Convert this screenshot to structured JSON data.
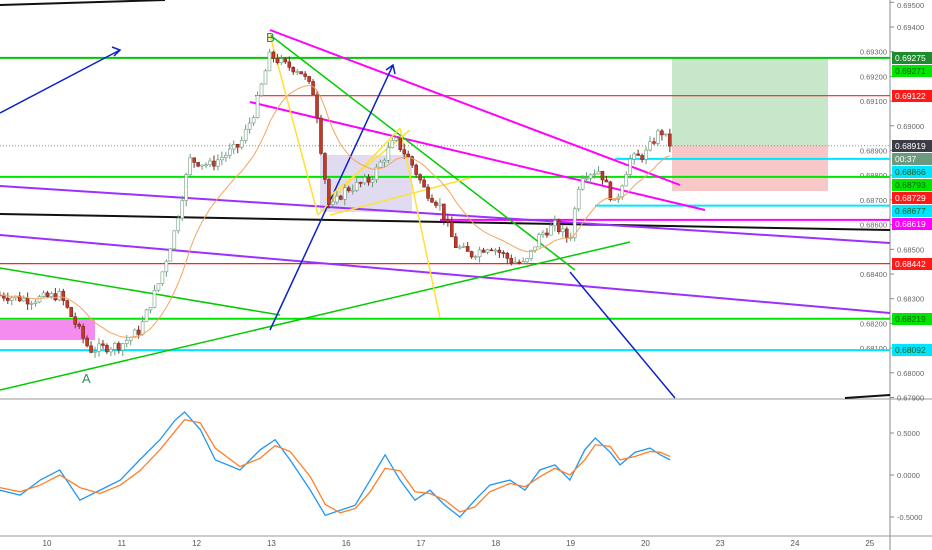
{
  "chart_data": {
    "type": "candlestick",
    "title": "",
    "x_ticks": [
      "10",
      "11",
      "12",
      "13",
      "16",
      "17",
      "18",
      "19",
      "20",
      "23",
      "24",
      "25"
    ],
    "price_axis": {
      "ticks": [
        "0.69500",
        "0.69400",
        "0.69300",
        "0.69200",
        "0.69100",
        "0.69000",
        "0.68900",
        "0.68800",
        "0.68700",
        "0.68600",
        "0.68500",
        "0.68400",
        "0.68300",
        "0.68200",
        "0.68100",
        "0.68000",
        "0.67900"
      ],
      "range": [
        0.67898,
        0.69509
      ]
    },
    "price_path": {
      "t": [
        -0.63,
        -0.23,
        0.17,
        0.57,
        0.98,
        1.24,
        1.51,
        1.71,
        1.91,
        2.18,
        2.58,
        2.78,
        2.98,
        3.18,
        3.38,
        3.58,
        3.68,
        3.78,
        3.98,
        4.32,
        4.65,
        4.85,
        5.05,
        5.25,
        5.45,
        5.66,
        5.92,
        6.19,
        6.39,
        6.59,
        6.79,
        6.99,
        7.13,
        7.39,
        7.59,
        7.79,
        7.99,
        8.2,
        8.36
      ],
      "close": [
        0.68315,
        0.68295,
        0.68315,
        0.68092,
        0.68113,
        0.68173,
        0.68376,
        0.68578,
        0.68862,
        0.68841,
        0.68922,
        0.69064,
        0.69287,
        0.69246,
        0.69226,
        0.69125,
        0.68862,
        0.68659,
        0.6874,
        0.68781,
        0.68943,
        0.68862,
        0.6874,
        0.68679,
        0.68517,
        0.68477,
        0.68517,
        0.68457,
        0.68436,
        0.68558,
        0.68598,
        0.68538,
        0.68801,
        0.68821,
        0.68679,
        0.68862,
        0.68882,
        0.68983,
        0.6891
      ]
    },
    "levels": [
      {
        "price": "0.69275",
        "color": "#00c800",
        "line": true,
        "label_color": "#1e8c2e"
      },
      {
        "price": "0.69271",
        "color": "#00e600",
        "line": false,
        "label_color": "#00e600"
      },
      {
        "price": "0.69122",
        "color": "#ff2020",
        "line": true,
        "label_color": "#ff1a1a"
      },
      {
        "price": "0.68919",
        "color": "#555555",
        "line": true,
        "label_color": "#3c3c46"
      },
      {
        "price": "0.68866",
        "color": "#00e5ff",
        "line": true,
        "label_color": "#00e5ff"
      },
      {
        "price": "0.68793",
        "color": "#00e600",
        "line": true,
        "label_color": "#00e600"
      },
      {
        "price": "0.68729",
        "color": "#ff2020",
        "line": false,
        "label_color": "#ff1a1a"
      },
      {
        "price": "0.68677",
        "color": "#00e5ff",
        "line": true,
        "label_color": "#00e5ff"
      },
      {
        "price": "0.68619",
        "color": "#ff00ff",
        "line": true,
        "label_color": "#ff00ff"
      },
      {
        "price": "0.68442",
        "color": "#ff2020",
        "line": true,
        "label_color": "#ff1a1a"
      },
      {
        "price": "0.68219",
        "color": "#00e600",
        "line": true,
        "label_color": "#00e600"
      },
      {
        "price": "0.68092",
        "color": "#00e5ff",
        "line": true,
        "label_color": "#00e5ff"
      }
    ],
    "countdown": "00:37",
    "pattern_labels": {
      "a": "A",
      "b": "B"
    },
    "oscillator": {
      "ticks": [
        "0.5000",
        "0.0000",
        "-0.5000"
      ],
      "range": [
        -0.62,
        0.9
      ],
      "t": [
        -0.63,
        -0.36,
        -0.09,
        0.17,
        0.44,
        0.71,
        0.98,
        1.24,
        1.51,
        1.71,
        1.84,
        2.05,
        2.25,
        2.58,
        2.85,
        3.05,
        3.25,
        3.52,
        3.72,
        3.92,
        4.12,
        4.32,
        4.52,
        4.72,
        4.92,
        5.12,
        5.32,
        5.52,
        5.72,
        5.92,
        6.19,
        6.39,
        6.59,
        6.79,
        6.99,
        7.19,
        7.33,
        7.53,
        7.66,
        7.86,
        8.06,
        8.2,
        8.33
      ],
      "series": [
        {
          "color": "#2196f3",
          "values": [
            -0.18,
            -0.24,
            -0.06,
            0.06,
            -0.3,
            -0.18,
            -0.06,
            0.18,
            0.42,
            0.65,
            0.75,
            0.54,
            0.18,
            0.06,
            0.3,
            0.42,
            0.18,
            -0.18,
            -0.48,
            -0.42,
            -0.36,
            -0.06,
            0.24,
            -0.06,
            -0.3,
            -0.18,
            -0.36,
            -0.5,
            -0.3,
            -0.12,
            -0.06,
            -0.18,
            0.06,
            0.12,
            -0.06,
            0.3,
            0.44,
            0.27,
            0.12,
            0.27,
            0.32,
            0.24,
            0.18
          ]
        },
        {
          "color": "#ff7f27",
          "values": [
            -0.15,
            -0.2,
            -0.12,
            0.0,
            -0.15,
            -0.22,
            -0.12,
            0.05,
            0.3,
            0.52,
            0.66,
            0.62,
            0.32,
            0.1,
            0.2,
            0.35,
            0.28,
            -0.02,
            -0.35,
            -0.45,
            -0.4,
            -0.2,
            0.08,
            0.05,
            -0.2,
            -0.22,
            -0.3,
            -0.44,
            -0.38,
            -0.2,
            -0.1,
            -0.14,
            -0.02,
            0.08,
            0.0,
            0.18,
            0.36,
            0.34,
            0.18,
            0.22,
            0.28,
            0.27,
            0.22
          ]
        }
      ]
    },
    "colors": {
      "up_body": "#ffffff",
      "up_border": "#6f9c7f",
      "down_body": "#c0392b",
      "ma": "#f4a460",
      "position_target": "#c8e6c9",
      "position_stop": "#f8c8c8",
      "range_box": "#d8d2ec",
      "pink_box": "#f48cf0"
    }
  }
}
